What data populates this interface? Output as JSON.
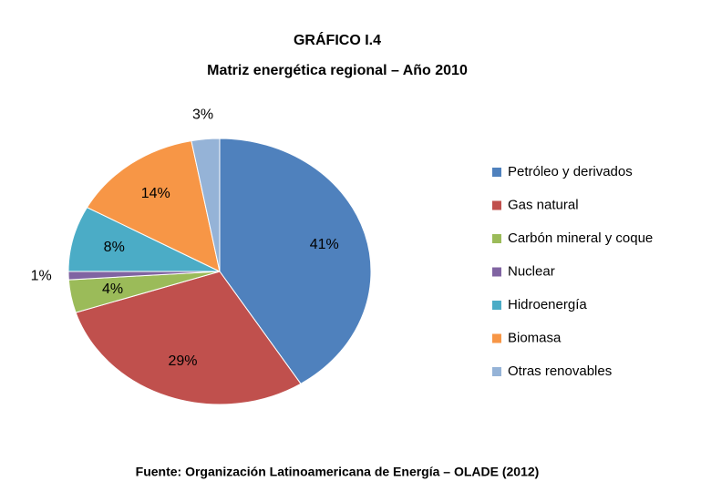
{
  "chart_data": {
    "type": "pie",
    "title": "GRÁFICO I.4",
    "subtitle": "Matriz energética regional – Año 2010",
    "source": "Fuente: Organización Latinoamericana de Energía – OLADE (2012)",
    "categories": [
      "Petróleo y derivados",
      "Gas natural",
      "Carbón mineral y coque",
      "Nuclear",
      "Hidroenergía",
      "Biomasa",
      "Otras renovables"
    ],
    "values": [
      41,
      29,
      4,
      1,
      8,
      14,
      3
    ],
    "value_labels": [
      "41%",
      "29%",
      "4%",
      "1%",
      "8%",
      "14%",
      "3%"
    ],
    "colors": [
      "#4f81bd",
      "#c0504d",
      "#9bbb59",
      "#8064a2",
      "#4bacc6",
      "#f79646",
      "#95b3d7"
    ],
    "legend": "right"
  }
}
